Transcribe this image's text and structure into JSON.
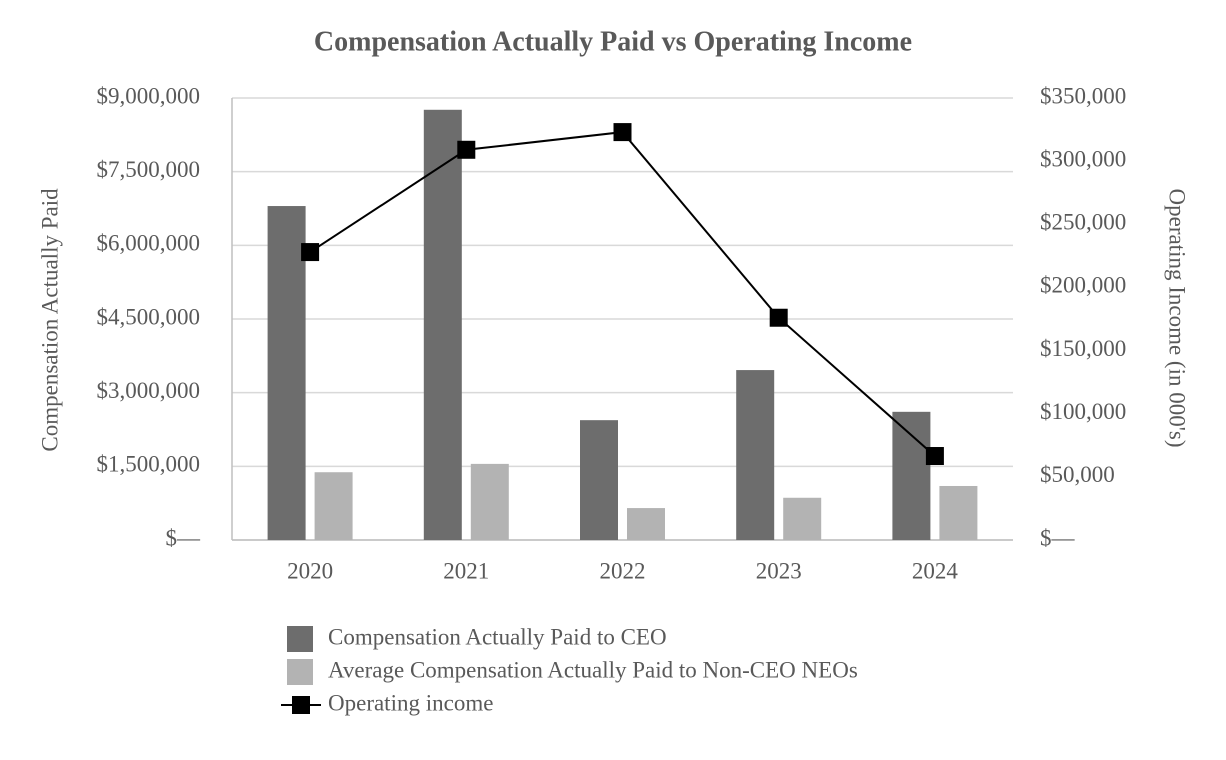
{
  "chart_data": {
    "type": "bar_line",
    "title": "Compensation Actually Paid vs Operating Income",
    "y_label": "Compensation Actually Paid",
    "y2_label": "Operating Income (in 000's)",
    "categories": [
      "2020",
      "2021",
      "2022",
      "2023",
      "2024"
    ],
    "series": [
      {
        "name": "Compensation Actually Paid to CEO",
        "color": "#6d6d6d",
        "type": "bar",
        "values": [
          6800000,
          8760000,
          2440000,
          3460000,
          2610000
        ]
      },
      {
        "name": "Average Compensation Actually Paid to Non-CEO NEOs",
        "color": "#b3b3b3",
        "type": "bar",
        "values": [
          1380000,
          1550000,
          650000,
          860000,
          1100000
        ]
      },
      {
        "name": "Operating income",
        "color": "#000000",
        "type": "line",
        "axis": "y2",
        "values": [
          228000,
          309000,
          323000,
          176000,
          66500
        ]
      }
    ],
    "ylim": [
      0,
      9000000
    ],
    "yticks": [
      {
        "value": 0,
        "label": "$—"
      },
      {
        "value": 1500000,
        "label": "$1,500,000"
      },
      {
        "value": 3000000,
        "label": "$3,000,000"
      },
      {
        "value": 4500000,
        "label": "$4,500,000"
      },
      {
        "value": 6000000,
        "label": "$6,000,000"
      },
      {
        "value": 7500000,
        "label": "$7,500,000"
      },
      {
        "value": 9000000,
        "label": "$9,000,000"
      }
    ],
    "y2lim": [
      0,
      350000
    ],
    "y2ticks": [
      {
        "value": 0,
        "label": "$—"
      },
      {
        "value": 50000,
        "label": "$50,000"
      },
      {
        "value": 100000,
        "label": "$100,000"
      },
      {
        "value": 150000,
        "label": "$150,000"
      },
      {
        "value": 200000,
        "label": "$200,000"
      },
      {
        "value": 250000,
        "label": "$250,000"
      },
      {
        "value": 300000,
        "label": "$300,000"
      },
      {
        "value": 350000,
        "label": "$350,000"
      }
    ],
    "grid": true,
    "legend": "bottom"
  }
}
